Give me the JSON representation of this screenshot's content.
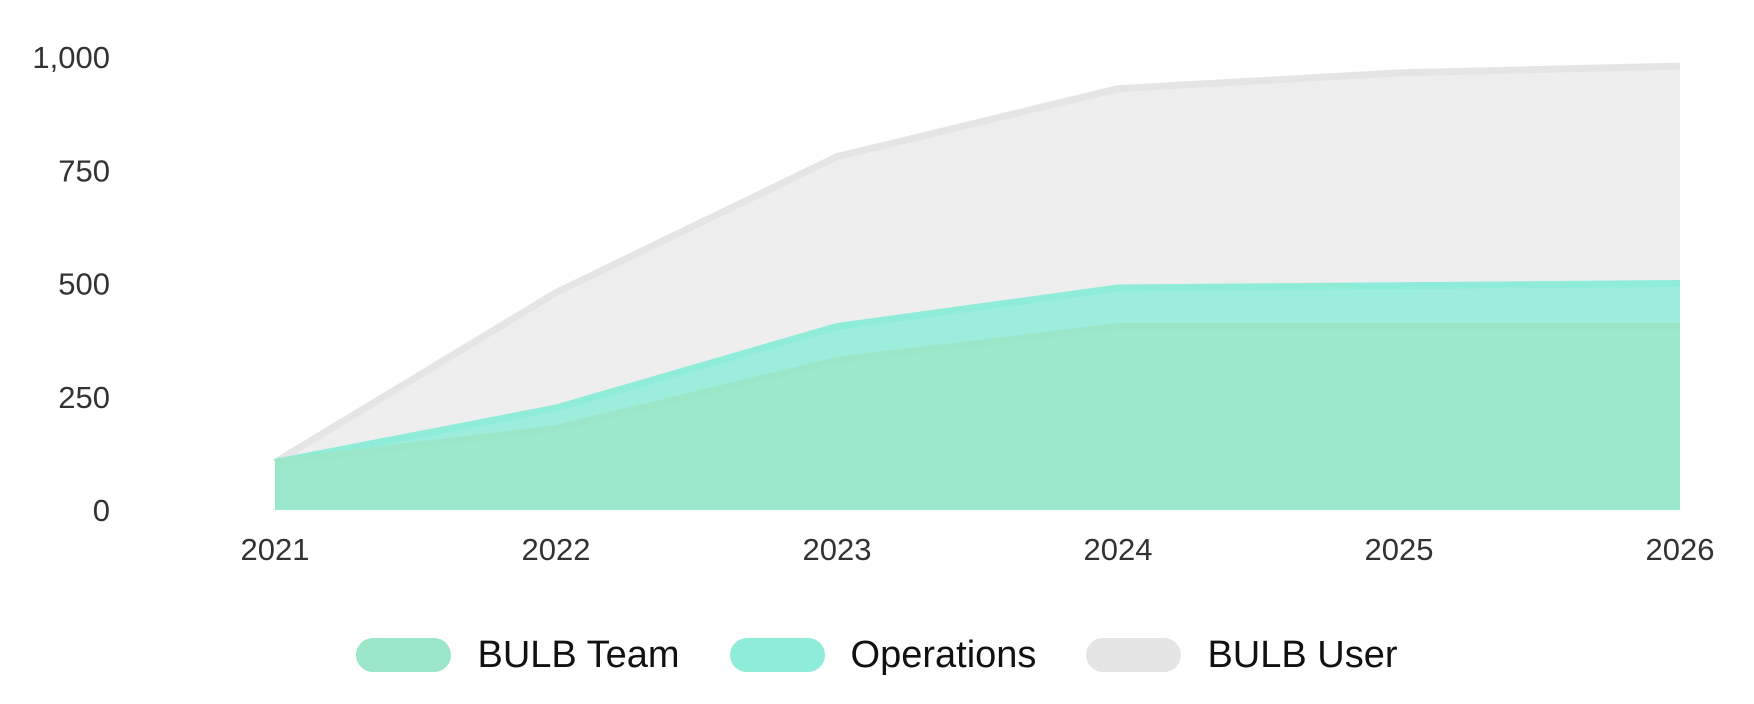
{
  "chart_data": {
    "type": "area",
    "stacked": true,
    "categories": [
      "2021",
      "2022",
      "2023",
      "2024",
      "2025",
      "2026"
    ],
    "series": [
      {
        "name": "BULB Team",
        "values": [
          105,
          180,
          330,
          405,
          405,
          405
        ],
        "color": "#9be6c9"
      },
      {
        "name": "Operations",
        "values": [
          0,
          45,
          75,
          85,
          90,
          95
        ],
        "color": "#8eecd8"
      },
      {
        "name": "BULB User",
        "values": [
          0,
          255,
          375,
          440,
          470,
          480
        ],
        "color": "#e5e5e5"
      }
    ],
    "yticks": [
      "0",
      "250",
      "500",
      "750",
      "1,000"
    ],
    "ylim": [
      0,
      1000
    ],
    "title": "",
    "xlabel": "",
    "ylabel": "",
    "grid": false,
    "legend_position": "bottom"
  }
}
